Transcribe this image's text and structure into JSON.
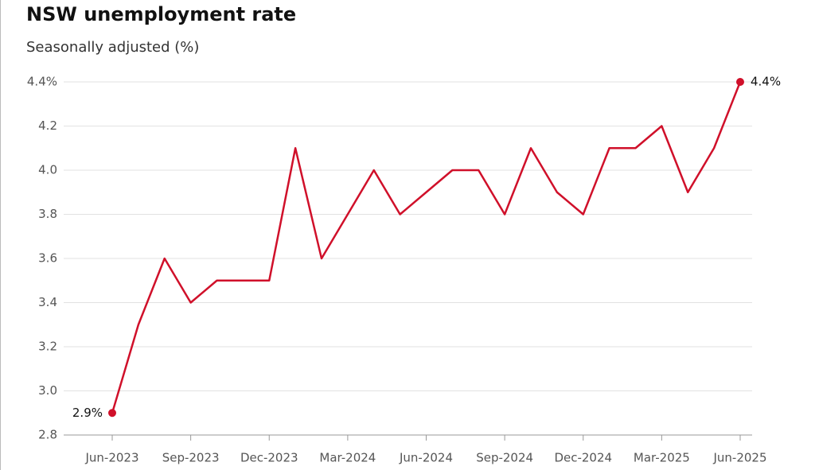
{
  "chart_data": {
    "type": "line",
    "title": "NSW unemployment rate",
    "subtitle": "Seasonally adjusted (%)",
    "categories": [
      "Jun-2023",
      null,
      null,
      "Sep-2023",
      null,
      null,
      "Dec-2023",
      null,
      null,
      "Mar-2024",
      null,
      null,
      "Jun-2024",
      null,
      null,
      "Sep-2024",
      null,
      null,
      "Dec-2024",
      null,
      null,
      "Mar-2025",
      null,
      null,
      "Jun-2025"
    ],
    "values": [
      2.9,
      3.3,
      3.6,
      3.4,
      3.5,
      3.5,
      3.5,
      4.1,
      3.6,
      3.8,
      4.0,
      3.8,
      3.9,
      4.0,
      4.0,
      3.8,
      4.1,
      3.9,
      3.8,
      4.1,
      4.1,
      4.2,
      3.9,
      4.1,
      4.4
    ],
    "value_labels": [
      "2.9%",
      null,
      null,
      null,
      null,
      null,
      null,
      null,
      null,
      null,
      null,
      null,
      null,
      null,
      null,
      null,
      null,
      null,
      null,
      null,
      null,
      null,
      null,
      null,
      "4.4%"
    ],
    "color": "#d0102a",
    "ylim": [
      2.8,
      4.4
    ],
    "yticks": [
      2.8,
      {
        "value": 3,
        "label": "3.0"
      },
      3.2,
      3.4,
      3.6,
      3.8,
      {
        "value": 4,
        "label": "4.0"
      },
      4.2,
      {
        "value": 4.4,
        "label": "4.4%"
      }
    ],
    "grid": true
  }
}
